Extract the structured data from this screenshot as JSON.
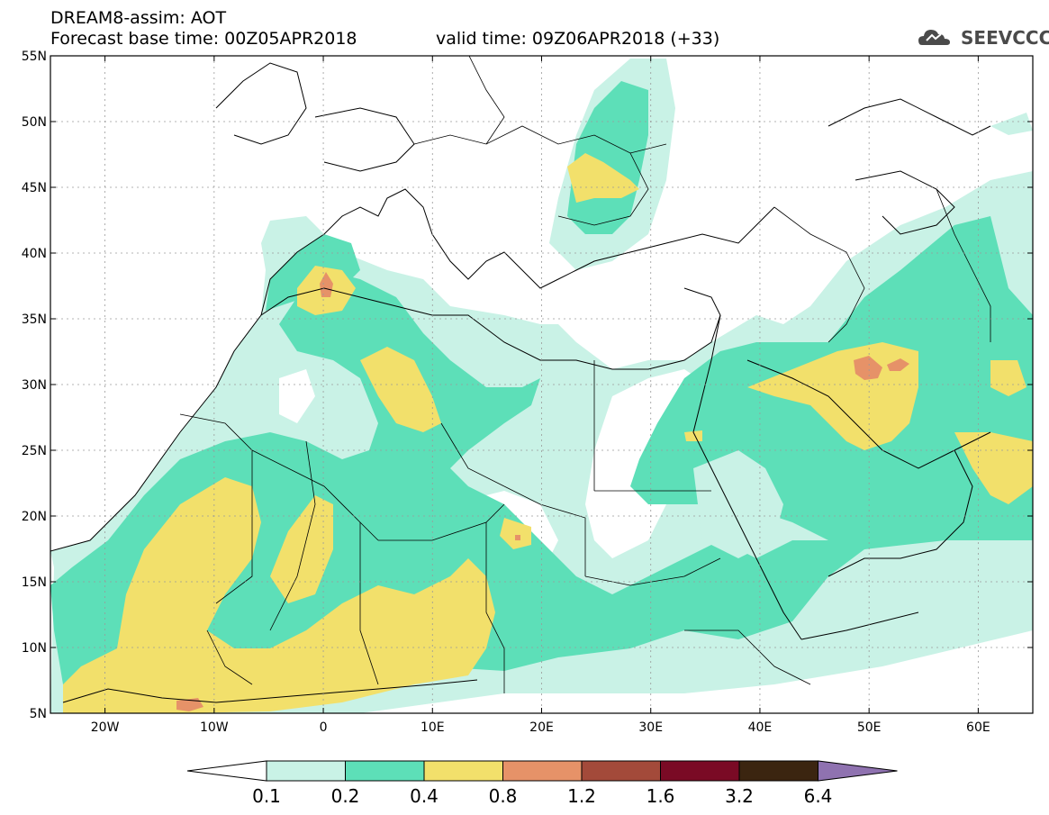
{
  "header": {
    "model_line": "DREAM8-assim: AOT",
    "base_time_line": "Forecast base time: 00Z05APR2018",
    "valid_time_line": "valid time: 09Z06APR2018 (+33)"
  },
  "logo": {
    "text": "SEEVCCC",
    "icon": "cloud-icon"
  },
  "map": {
    "lat_labels": [
      "55N",
      "50N",
      "45N",
      "40N",
      "35N",
      "30N",
      "25N",
      "20N",
      "15N",
      "10N",
      "5N"
    ],
    "lon_labels": [
      "20W",
      "10W",
      "0",
      "10E",
      "20E",
      "30E",
      "40E",
      "50E",
      "60E"
    ],
    "lat_values": [
      55,
      50,
      45,
      40,
      35,
      30,
      25,
      20,
      15,
      10,
      5
    ],
    "lon_values": [
      -20,
      -10,
      0,
      10,
      20,
      30,
      40,
      50,
      60
    ],
    "extent": {
      "lon_min": -25,
      "lon_max": 65,
      "lat_min": 5,
      "lat_max": 55
    }
  },
  "colorbar": {
    "labels": [
      "0.1",
      "0.2",
      "0.4",
      "0.8",
      "1.2",
      "1.6",
      "3.2",
      "6.4"
    ],
    "colors": [
      "#ffffff",
      "#c9f2e6",
      "#5ddfb8",
      "#f2e06b",
      "#e69268",
      "#a34a3a",
      "#7a0a25",
      "#3b2510",
      "#8f72b0"
    ]
  },
  "colors": {
    "light_teal": "#c9f2e6",
    "teal": "#5ddfb8",
    "yellow": "#f2e06b",
    "orange": "#e69268"
  }
}
